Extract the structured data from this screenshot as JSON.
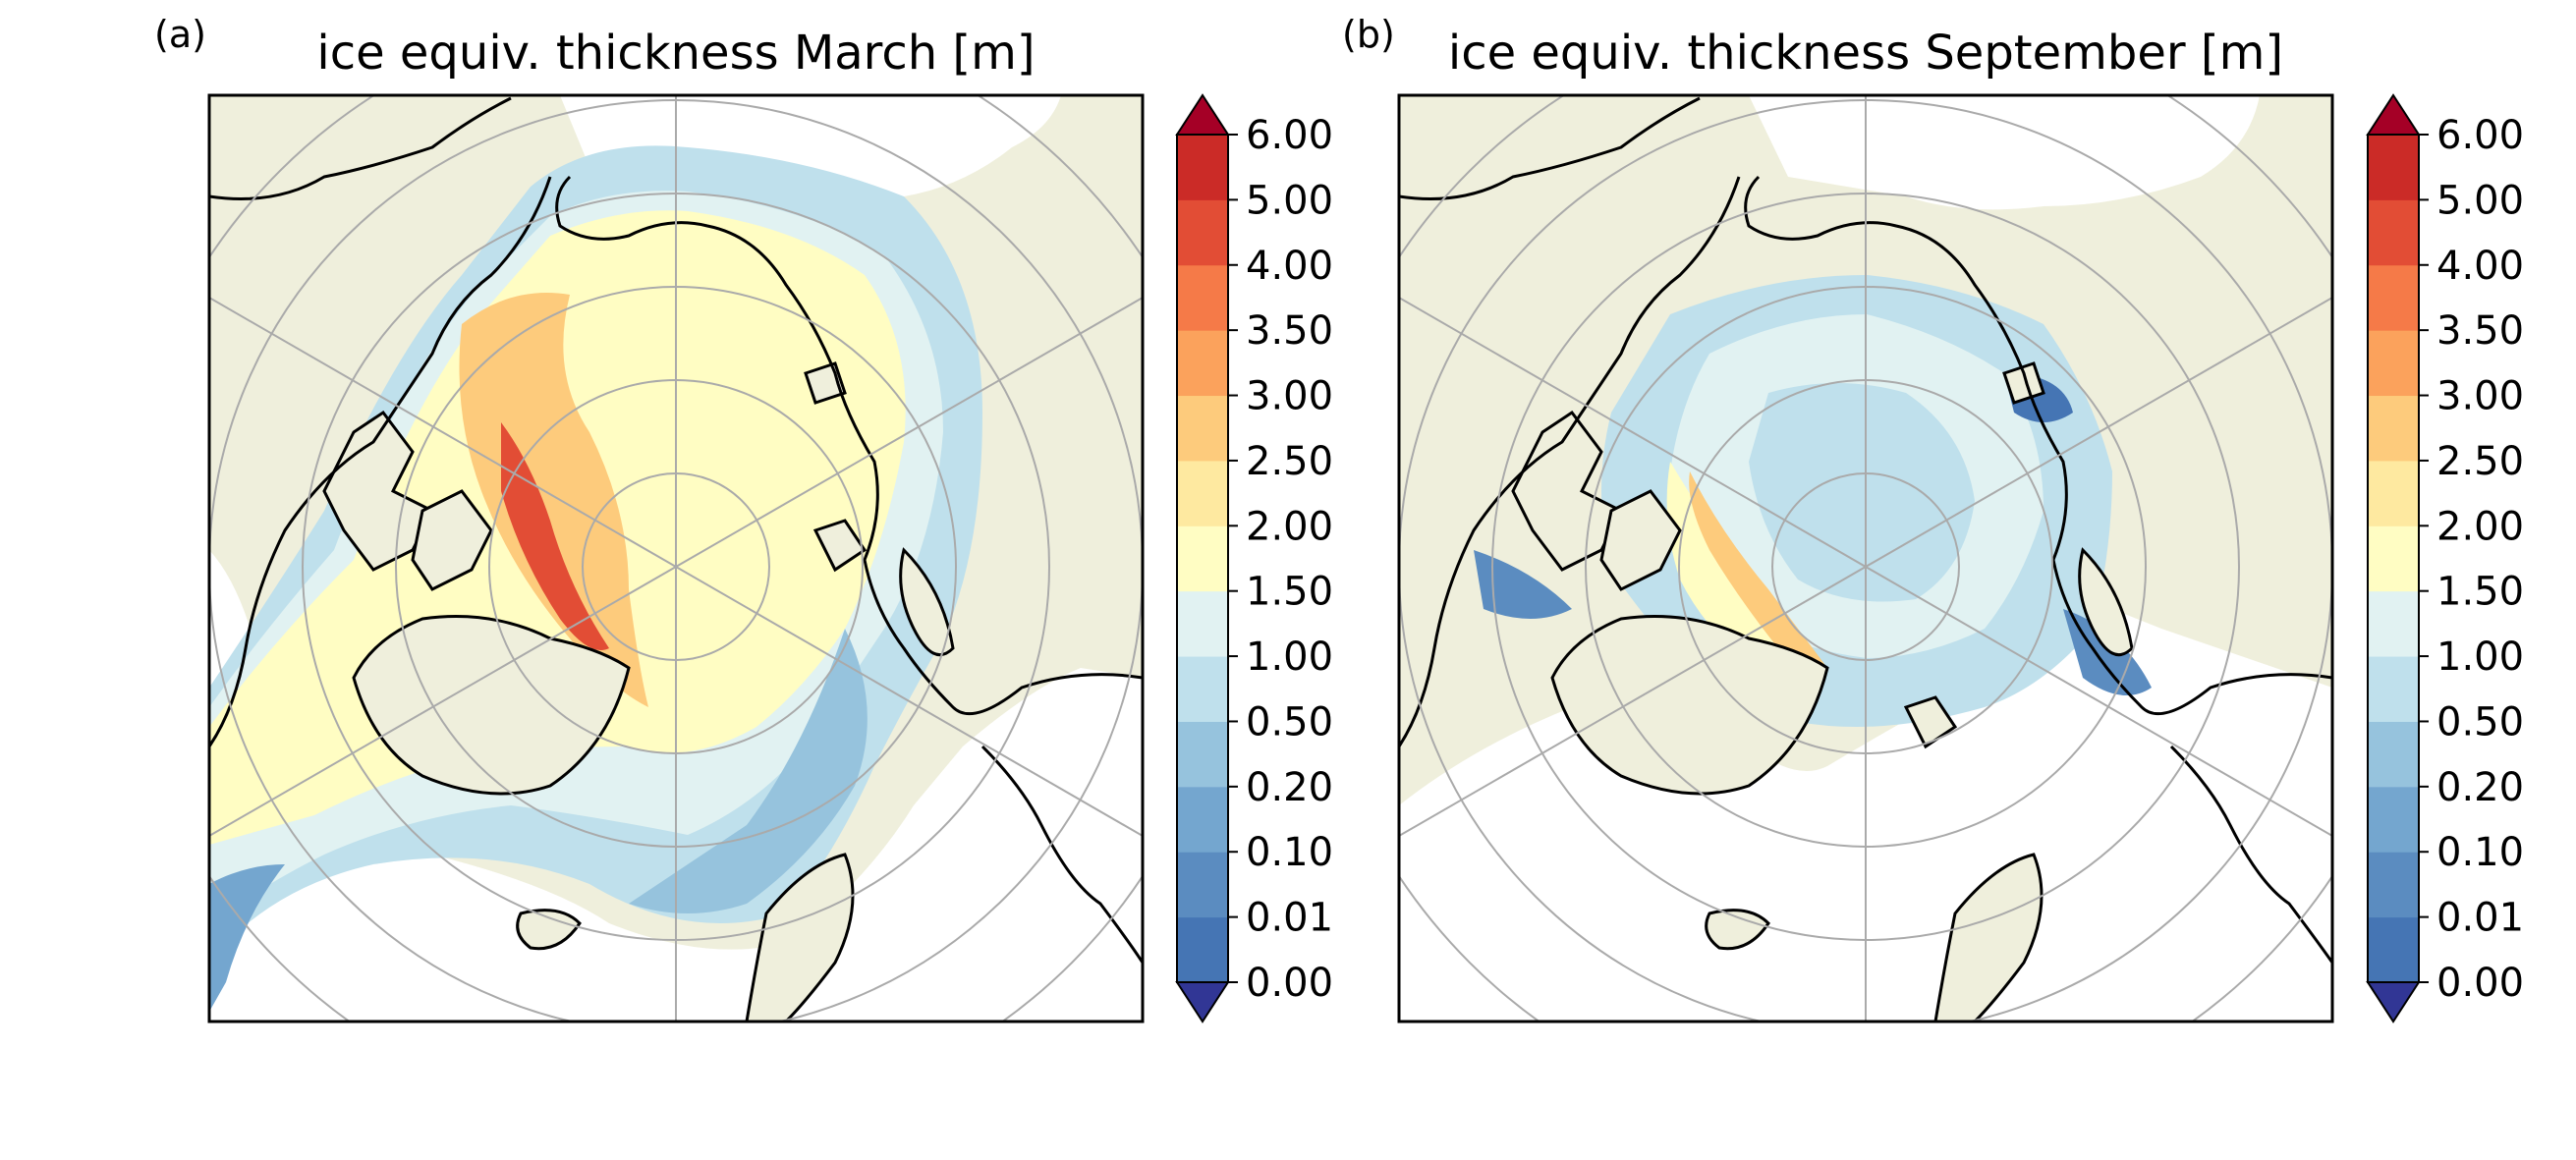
{
  "figure": {
    "panels": [
      {
        "id": "a",
        "label": "(a)",
        "title": "ice equiv. thickness March [m]",
        "month": "March"
      },
      {
        "id": "b",
        "label": "(b)",
        "title": "ice equiv. thickness September [m]",
        "month": "September"
      }
    ],
    "colorbar": {
      "ticks": [
        "0.00",
        "0.01",
        "0.10",
        "0.20",
        "0.50",
        "1.00",
        "1.50",
        "2.00",
        "2.50",
        "3.00",
        "3.50",
        "4.00",
        "5.00",
        "6.00"
      ],
      "colors": [
        "#4575b4",
        "#5b8cc0",
        "#74a6cf",
        "#96c3dd",
        "#bfe0ec",
        "#e1f2f2",
        "#fffdc3",
        "#fee9a0",
        "#fdcb7c",
        "#fba25c",
        "#f57a48",
        "#e24d35",
        "#cb2b27"
      ],
      "under_color": "#313695",
      "over_color": "#a50026",
      "extend": "both"
    },
    "map_colors": {
      "land": "#efefdc",
      "ocean": "#ffffff",
      "coastline": "#000000",
      "gridlines": "#aaaaaa"
    }
  }
}
